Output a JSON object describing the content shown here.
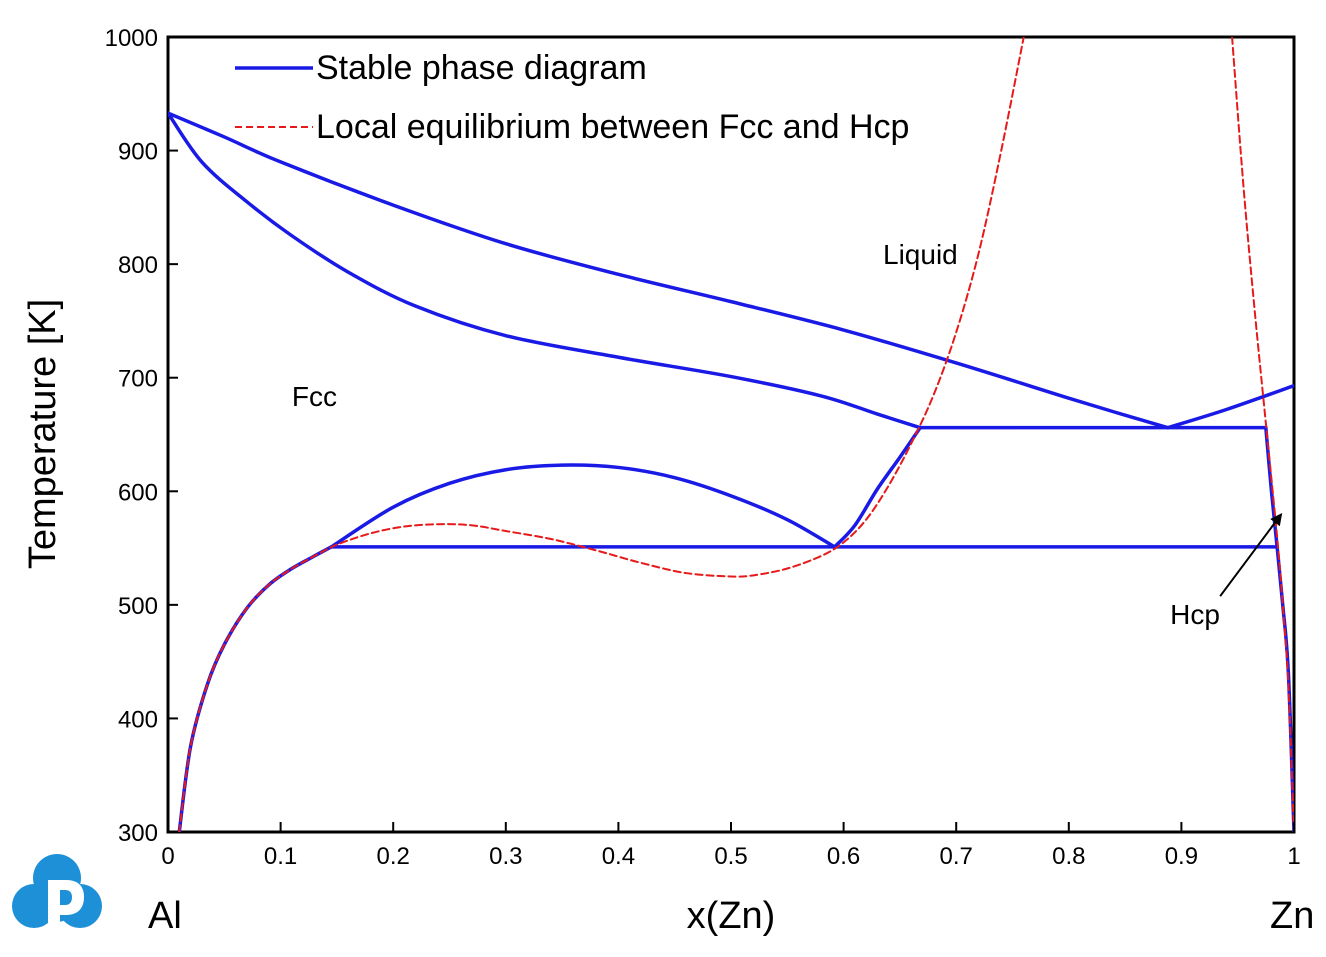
{
  "chart_data": {
    "type": "line",
    "xlabel": "x(Zn)",
    "ylabel": "Temperature [K]",
    "xlim": [
      0,
      1
    ],
    "ylim": [
      300,
      1000
    ],
    "x_ticks": [
      0,
      0.1,
      0.2,
      0.3,
      0.4,
      0.5,
      0.6,
      0.7,
      0.8,
      0.9,
      1
    ],
    "x_tick_labels": [
      "0",
      "0.1",
      "0.2",
      "0.3",
      "0.4",
      "0.5",
      "0.6",
      "0.7",
      "0.8",
      "0.9",
      "1"
    ],
    "y_ticks": [
      300,
      400,
      500,
      600,
      700,
      800,
      900,
      1000
    ],
    "y_tick_labels": [
      "300",
      "400",
      "500",
      "600",
      "700",
      "800",
      "900",
      "1000"
    ],
    "grid": false,
    "legend_position": "top-left",
    "endpoint_labels": {
      "left": "Al",
      "right": "Zn"
    },
    "series": [
      {
        "name": "Stable phase diagram",
        "color": "#1a1ae6",
        "style": "solid",
        "segments": [
          {
            "x": [
              0.0,
              0.05,
              0.1,
              0.2,
              0.3,
              0.4,
              0.5,
              0.6,
              0.7,
              0.8,
              0.85,
              0.888
            ],
            "y": [
              933,
              912,
              890,
              852,
              818,
              791,
              767,
              742,
              713,
              682,
              667,
              656
            ]
          },
          {
            "x": [
              0.0,
              0.03,
              0.07,
              0.11,
              0.16,
              0.22,
              0.3,
              0.4,
              0.5,
              0.58,
              0.63,
              0.668
            ],
            "y": [
              933,
              890,
              855,
              825,
              793,
              763,
              737,
              718,
              701,
              684,
              668,
              656
            ]
          },
          {
            "x": [
              0.668,
              0.975
            ],
            "y": [
              656,
              656
            ]
          },
          {
            "x": [
              0.888,
              0.94,
              1.0
            ],
            "y": [
              656,
              672,
              693
            ]
          },
          {
            "x": [
              0.145,
              0.2,
              0.25,
              0.3,
              0.35,
              0.4,
              0.45,
              0.5,
              0.55,
              0.592
            ],
            "y": [
              551,
              586,
              607,
              619,
              623,
              621,
              612,
              596,
              575,
              551
            ]
          },
          {
            "x": [
              0.145,
              0.985
            ],
            "y": [
              551,
              551
            ]
          },
          {
            "x": [
              0.01,
              0.02,
              0.035,
              0.05,
              0.07,
              0.09,
              0.11,
              0.13,
              0.145
            ],
            "y": [
              300,
              375,
              430,
              465,
              497,
              518,
              532,
              543,
              551
            ]
          },
          {
            "x": [
              0.592,
              0.61,
              0.63,
              0.65,
              0.668
            ],
            "y": [
              551,
              570,
              602,
              630,
              656
            ]
          },
          {
            "x": [
              0.975,
              0.98,
              0.985,
              0.99,
              0.995,
              1.0
            ],
            "y": [
              656,
              600,
              551,
              500,
              440,
              300
            ]
          }
        ]
      },
      {
        "name": "Local equilibrium between Fcc and Hcp",
        "color": "#e61a1a",
        "style": "dashed",
        "segments": [
          {
            "x": [
              0.01,
              0.02,
              0.035,
              0.05,
              0.07,
              0.09,
              0.11,
              0.13,
              0.15,
              0.18,
              0.21,
              0.24,
              0.27,
              0.3,
              0.34,
              0.38,
              0.42,
              0.46,
              0.5,
              0.52,
              0.55,
              0.58,
              0.6,
              0.62,
              0.64,
              0.66,
              0.68,
              0.7,
              0.72,
              0.74,
              0.76
            ],
            "y": [
              300,
              375,
              430,
              465,
              497,
              518,
              532,
              543,
              553,
              563,
              569,
              571,
              570,
              565,
              558,
              548,
              537,
              528,
              525,
              526,
              532,
              543,
              555,
              575,
              605,
              642,
              685,
              740,
              810,
              900,
              1000
            ]
          },
          {
            "x": [
              0.945,
              0.955,
              0.965,
              0.975,
              0.985,
              0.99,
              0.995,
              1.0
            ],
            "y": [
              1000,
              870,
              760,
              660,
              560,
              500,
              430,
              300
            ]
          }
        ]
      }
    ],
    "annotations": [
      {
        "text": "Liquid",
        "x": 0.635,
        "y": 800
      },
      {
        "text": "Fcc",
        "x": 0.11,
        "y": 675
      },
      {
        "text": "Hcp",
        "x": 0.89,
        "y": 483,
        "arrow_to": [
          0.992,
          583
        ]
      }
    ]
  }
}
